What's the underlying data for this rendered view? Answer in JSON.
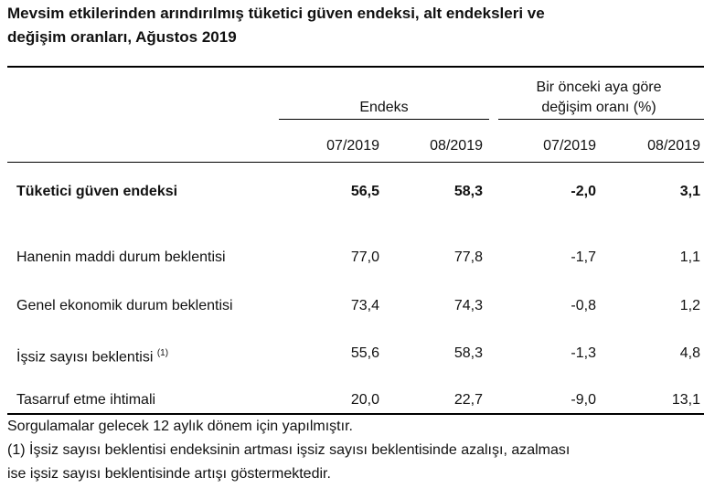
{
  "header": {
    "title": "Mevsim etkilerinden arındırılmış tüketici güven endeksi, alt endeksleri ve",
    "title_line2": "değişim oranları, Ağustos 2019"
  },
  "table": {
    "groups": [
      "Endeks",
      "Bir önceki aya göre",
      "değişim oranı (%)"
    ],
    "columns": [
      "07/2019",
      "08/2019",
      "07/2019",
      "08/2019"
    ],
    "rows": [
      {
        "label": "Tüketici güven endeksi",
        "cells": [
          "56,5",
          "58,3",
          "-2,0",
          "3,1"
        ]
      },
      {
        "label": "Hanenin maddi durum beklentisi",
        "cells": [
          "77,0",
          "77,8",
          "-1,7",
          "1,1"
        ]
      },
      {
        "label": "Genel ekonomik durum beklentisi",
        "cells": [
          "73,4",
          "74,3",
          "-0,8",
          "1,2"
        ]
      },
      {
        "label": "İşsiz sayısı beklentisi",
        "note": "(1)",
        "cells": [
          "55,6",
          "58,3",
          "-1,3",
          "4,8"
        ]
      },
      {
        "label": "Tasarruf etme ihtimali",
        "cells": [
          "20,0",
          "22,7",
          "-9,0",
          "13,1"
        ]
      }
    ]
  },
  "footnotes": [
    "Sorgulamalar gelecek 12 aylık dönem için yapılmıştır.",
    "(1) İşsiz sayısı beklentisi endeksinin artması işsiz sayısı beklentisinde azalışı, azalması",
    "ise işsiz sayısı beklentisinde artışı göstermektedir."
  ]
}
